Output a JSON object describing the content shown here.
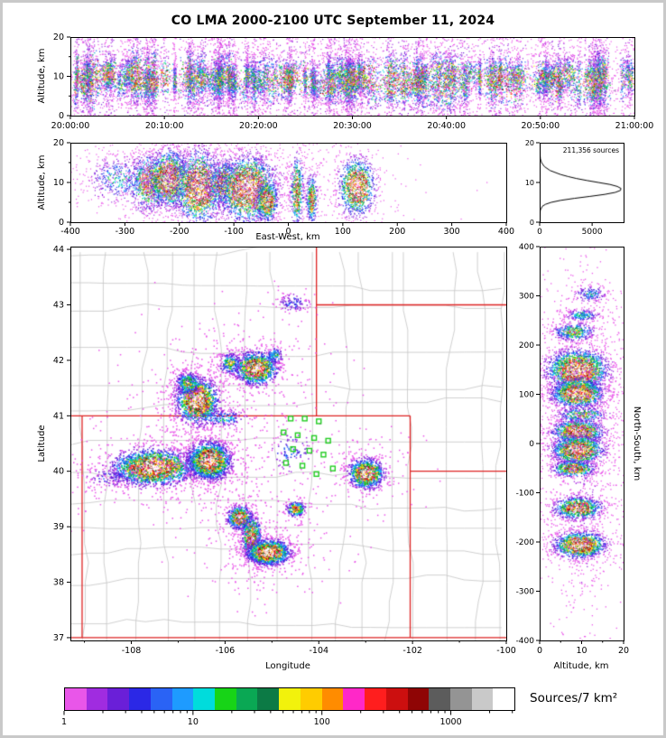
{
  "title": "CO LMA 2000-2100 UTC September 11, 2024",
  "panels": {
    "time_height": {
      "ylabel": "Altitude, km",
      "yticks": [
        "0",
        "10",
        "20"
      ],
      "xticks": [
        "20:00:00",
        "20:10:00",
        "20:20:00",
        "20:30:00",
        "20:40:00",
        "20:50:00",
        "21:00:00"
      ]
    },
    "east_west": {
      "xlabel": "East-West, km",
      "ylabel": "Altitude, km",
      "xticks": [
        "-400",
        "-300",
        "-200",
        "-100",
        "0",
        "100",
        "200",
        "300",
        "400"
      ],
      "yticks": [
        "0",
        "10",
        "20"
      ]
    },
    "histogram": {
      "annotation": "211,356 sources",
      "xticks": [
        "0",
        "5000"
      ],
      "yticks": [
        "0",
        "10",
        "20"
      ]
    },
    "map": {
      "xlabel": "Longitude",
      "ylabel": "Latitude",
      "xticks": [
        "-108",
        "-106",
        "-104",
        "-102",
        "-100"
      ],
      "yticks": [
        "37",
        "38",
        "39",
        "40",
        "41",
        "42",
        "43",
        "44"
      ]
    },
    "north_south": {
      "xlabel": "Altitude, km",
      "ylabel": "North-South, km",
      "xticks": [
        "0",
        "10",
        "20"
      ],
      "yticks": [
        "400",
        "300",
        "200",
        "100",
        "0",
        "-100",
        "-200",
        "-300",
        "-400"
      ]
    },
    "colorbar": {
      "label": "Sources/7 km²",
      "ticks": [
        "1",
        "10",
        "100",
        "1000"
      ],
      "colors": [
        "#e956e9",
        "#a02ce0",
        "#6a1fd8",
        "#2b28e6",
        "#2a63f5",
        "#1e9bff",
        "#00dcdc",
        "#17d417",
        "#0aa854",
        "#0c7a45",
        "#f2f20c",
        "#ffcc00",
        "#ff8c00",
        "#ff28c8",
        "#ff1e1e",
        "#cc0f0f",
        "#8f0505",
        "#5c5c5c",
        "#949494",
        "#c9c9c9",
        "#ffffff"
      ]
    }
  },
  "chart_data": {
    "type": "scatter",
    "figure": "Colorado LMA multi-panel lightning source density plot",
    "total_sources": 211356,
    "time_height": {
      "x_range_utc": [
        "20:00:00",
        "21:00:00"
      ],
      "alt_range_km": [
        0,
        20
      ],
      "alt_peak_km": 9,
      "n_stripes": 150,
      "description": "dense vertical bursts of lightning sources across the full hour, concentrated between 5 and 15 km altitude with magenta fringes above and below"
    },
    "east_west": {
      "x_range_km": [
        -400,
        400
      ],
      "alt_range_km": [
        0,
        20
      ],
      "clusters": [
        {
          "x": -310,
          "y": 11,
          "sx": 30,
          "sy": 3,
          "i": 0.3,
          "n": 500
        },
        {
          "x": -255,
          "y": 10,
          "sx": 18,
          "sy": 3.5,
          "i": 0.75,
          "n": 900
        },
        {
          "x": -220,
          "y": 11,
          "sx": 18,
          "sy": 3.5,
          "i": 0.95,
          "n": 1700
        },
        {
          "x": -165,
          "y": 9,
          "sx": 22,
          "sy": 4.5,
          "i": 0.92,
          "n": 1900
        },
        {
          "x": -120,
          "y": 10,
          "sx": 14,
          "sy": 3,
          "i": 0.7,
          "n": 700
        },
        {
          "x": -75,
          "y": 8.5,
          "sx": 26,
          "sy": 4,
          "i": 1.0,
          "n": 2500
        },
        {
          "x": -40,
          "y": 5.5,
          "sx": 10,
          "sy": 2.5,
          "i": 0.85,
          "n": 700
        },
        {
          "x": 15,
          "y": 8,
          "sx": 6,
          "sy": 4.5,
          "i": 0.7,
          "n": 550
        },
        {
          "x": 42,
          "y": 6,
          "sx": 5,
          "sy": 3,
          "i": 0.7,
          "n": 450
        },
        {
          "x": 125,
          "y": 9,
          "sx": 16,
          "sy": 3.5,
          "i": 0.95,
          "n": 1400
        },
        {
          "x": -150,
          "y": 12,
          "sx": 110,
          "sy": 4,
          "i": 0.1,
          "n": 700
        }
      ]
    },
    "altitude_histogram": {
      "alt_km": [
        0,
        1,
        2,
        3,
        4,
        4.5,
        5,
        5.5,
        6,
        6.5,
        7,
        7.5,
        8,
        8.5,
        9,
        9.5,
        10,
        10.5,
        11,
        11.5,
        12,
        13,
        14,
        15,
        16,
        17,
        18,
        19,
        20
      ],
      "counts": [
        0,
        0,
        10,
        60,
        250,
        550,
        1100,
        2000,
        3300,
        4800,
        6200,
        7200,
        7700,
        7750,
        7400,
        6700,
        5600,
        4500,
        3500,
        2700,
        2000,
        1000,
        450,
        180,
        70,
        25,
        8,
        2,
        0
      ],
      "xmax": 8000
    },
    "map": {
      "lon_range": [
        -109.3,
        -100.0
      ],
      "lat_range": [
        36.95,
        44.05
      ],
      "state_border_color": "#dd2222",
      "county_line_color": "#c4c4c4",
      "station_color": "#22cc22",
      "state_borders": [
        [
          [
            -109.3,
            41.0
          ],
          [
            -102.05,
            41.0
          ]
        ],
        [
          [
            -109.05,
            37.0
          ],
          [
            -109.05,
            41.0
          ]
        ],
        [
          [
            -109.3,
            37.0
          ],
          [
            -100.0,
            37.0
          ]
        ],
        [
          [
            -102.05,
            37.0
          ],
          [
            -102.05,
            41.0
          ]
        ],
        [
          [
            -104.05,
            41.0
          ],
          [
            -104.05,
            44.05
          ]
        ],
        [
          [
            -104.05,
            43.0
          ],
          [
            -100.0,
            43.0
          ]
        ],
        [
          [
            -102.05,
            40.0
          ],
          [
            -100.0,
            40.0
          ]
        ]
      ],
      "stations": [
        [
          -104.6,
          40.95
        ],
        [
          -104.3,
          40.95
        ],
        [
          -104.0,
          40.9
        ],
        [
          -104.75,
          40.7
        ],
        [
          -104.45,
          40.65
        ],
        [
          -104.1,
          40.6
        ],
        [
          -103.8,
          40.55
        ],
        [
          -104.55,
          40.4
        ],
        [
          -104.2,
          40.37
        ],
        [
          -104.7,
          40.15
        ],
        [
          -104.35,
          40.1
        ],
        [
          -103.9,
          40.3
        ],
        [
          -103.7,
          40.05
        ],
        [
          -104.05,
          39.95
        ]
      ],
      "clusters": [
        {
          "x": -107.55,
          "y": 40.08,
          "sx": 0.42,
          "sy": 0.16,
          "i": 0.95,
          "n": 2300
        },
        {
          "x": -108.45,
          "y": 39.9,
          "sx": 0.35,
          "sy": 0.1,
          "i": 0.15,
          "n": 150
        },
        {
          "x": -106.35,
          "y": 40.2,
          "sx": 0.22,
          "sy": 0.16,
          "i": 1.0,
          "n": 2200
        },
        {
          "x": -106.6,
          "y": 41.28,
          "sx": 0.22,
          "sy": 0.2,
          "i": 0.95,
          "n": 1700
        },
        {
          "x": -106.8,
          "y": 41.6,
          "sx": 0.14,
          "sy": 0.1,
          "i": 0.5,
          "n": 350
        },
        {
          "x": -105.35,
          "y": 41.87,
          "sx": 0.22,
          "sy": 0.14,
          "i": 0.95,
          "n": 1400
        },
        {
          "x": -105.9,
          "y": 41.95,
          "sx": 0.12,
          "sy": 0.1,
          "i": 0.45,
          "n": 250
        },
        {
          "x": -104.95,
          "y": 42.1,
          "sx": 0.1,
          "sy": 0.08,
          "i": 0.35,
          "n": 120
        },
        {
          "x": -104.55,
          "y": 43.05,
          "sx": 0.18,
          "sy": 0.08,
          "i": 0.22,
          "n": 130
        },
        {
          "x": -105.7,
          "y": 39.18,
          "sx": 0.13,
          "sy": 0.1,
          "i": 0.85,
          "n": 650
        },
        {
          "x": -105.45,
          "y": 38.82,
          "sx": 0.1,
          "sy": 0.2,
          "i": 0.8,
          "n": 750
        },
        {
          "x": -105.08,
          "y": 38.55,
          "sx": 0.22,
          "sy": 0.11,
          "i": 1.0,
          "n": 1700
        },
        {
          "x": -104.5,
          "y": 39.33,
          "sx": 0.1,
          "sy": 0.07,
          "i": 0.6,
          "n": 250
        },
        {
          "x": -103.0,
          "y": 39.97,
          "sx": 0.18,
          "sy": 0.13,
          "i": 0.95,
          "n": 1100
        },
        {
          "x": -106.1,
          "y": 40.97,
          "sx": 0.3,
          "sy": 0.08,
          "i": 0.3,
          "n": 200
        },
        {
          "x": -104.6,
          "y": 40.35,
          "sx": 0.25,
          "sy": 0.2,
          "i": 0.2,
          "n": 120
        }
      ]
    },
    "north_south": {
      "ns_range_km": [
        -400,
        400
      ],
      "alt_range_km": [
        0,
        20
      ],
      "clusters": [
        {
          "x": 9,
          "y": 150,
          "sx": 3.5,
          "sy": 20,
          "i": 1.0,
          "n": 2400
        },
        {
          "x": 9,
          "y": 103,
          "sx": 3,
          "sy": 14,
          "i": 0.95,
          "n": 1700
        },
        {
          "x": 8,
          "y": 228,
          "sx": 2.5,
          "sy": 9,
          "i": 0.5,
          "n": 450
        },
        {
          "x": 10,
          "y": 262,
          "sx": 2,
          "sy": 6,
          "i": 0.35,
          "n": 220
        },
        {
          "x": 12,
          "y": 305,
          "sx": 2,
          "sy": 8,
          "i": 0.3,
          "n": 180
        },
        {
          "x": 9,
          "y": 25,
          "sx": 3,
          "sy": 12,
          "i": 0.9,
          "n": 1200
        },
        {
          "x": 9,
          "y": -12,
          "sx": 3,
          "sy": 14,
          "i": 0.95,
          "n": 1600
        },
        {
          "x": 8,
          "y": -50,
          "sx": 2.5,
          "sy": 8,
          "i": 0.75,
          "n": 650
        },
        {
          "x": 9,
          "y": -130,
          "sx": 2.8,
          "sy": 11,
          "i": 0.85,
          "n": 1000
        },
        {
          "x": 9.5,
          "y": -205,
          "sx": 3,
          "sy": 13,
          "i": 0.95,
          "n": 1600
        },
        {
          "x": 10,
          "y": 60,
          "sx": 3,
          "sy": 8,
          "i": 0.5,
          "n": 350
        },
        {
          "x": 10,
          "y": 0,
          "sx": 4,
          "sy": 230,
          "i": 0.07,
          "n": 600
        }
      ]
    }
  }
}
